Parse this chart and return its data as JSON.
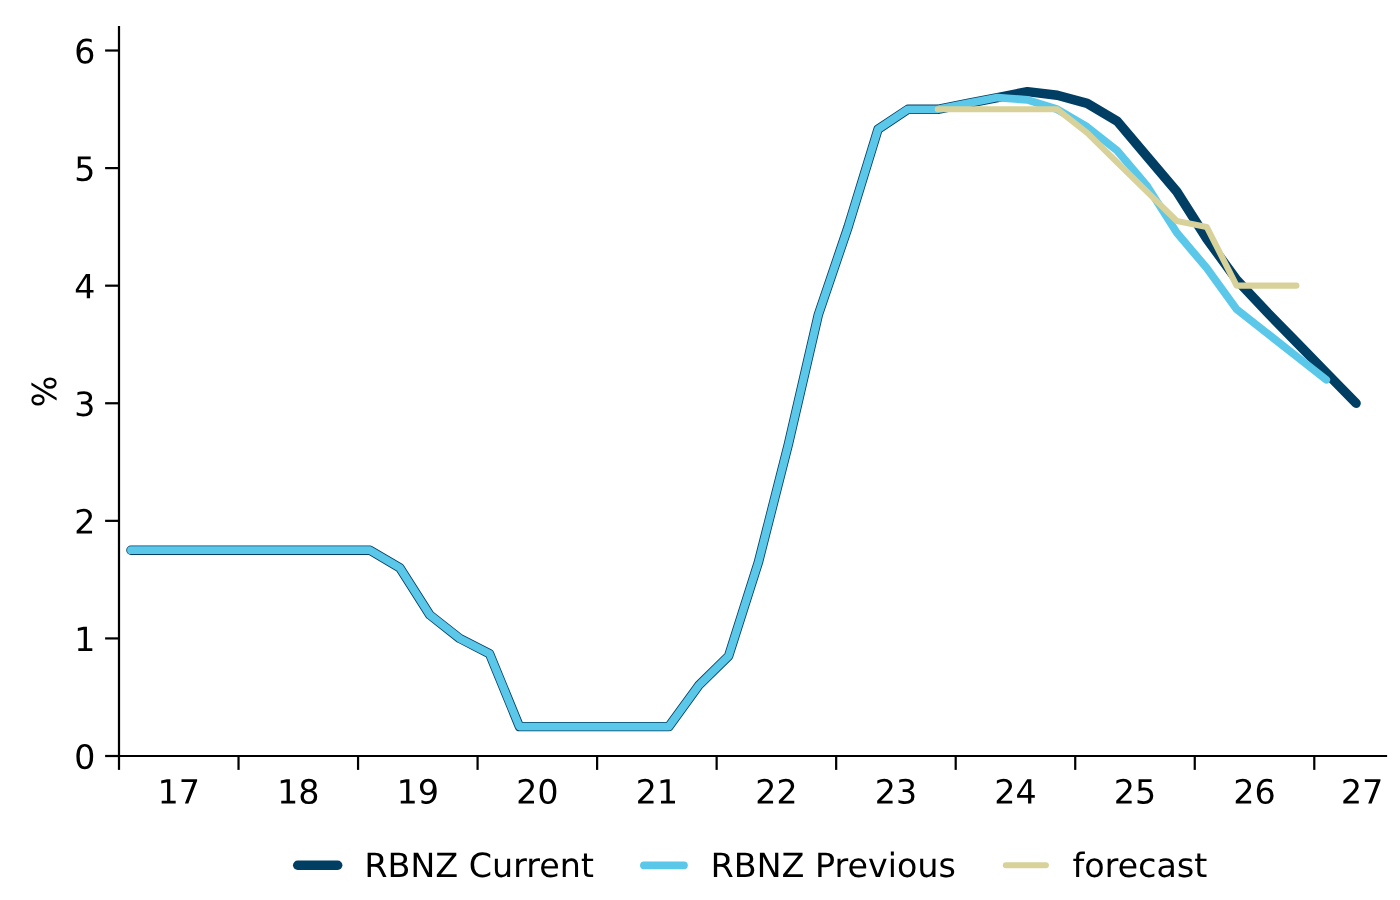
{
  "chart_data": {
    "type": "line",
    "ylabel": "%",
    "xlim": [
      17,
      27.6
    ],
    "ylim": [
      0,
      6.2
    ],
    "yticks": [
      0,
      1,
      2,
      3,
      4,
      5,
      6
    ],
    "xticks": [
      {
        "value": 17,
        "label": null
      },
      {
        "value": 17.5,
        "label": "17"
      },
      {
        "value": 18,
        "label": null
      },
      {
        "value": 18.5,
        "label": "18"
      },
      {
        "value": 19,
        "label": null
      },
      {
        "value": 19.5,
        "label": "19"
      },
      {
        "value": 20,
        "label": null
      },
      {
        "value": 20.5,
        "label": "20"
      },
      {
        "value": 21,
        "label": null
      },
      {
        "value": 21.5,
        "label": "21"
      },
      {
        "value": 22,
        "label": null
      },
      {
        "value": 22.5,
        "label": "22"
      },
      {
        "value": 23,
        "label": null
      },
      {
        "value": 23.5,
        "label": "23"
      },
      {
        "value": 24,
        "label": null
      },
      {
        "value": 24.5,
        "label": "24"
      },
      {
        "value": 25,
        "label": null
      },
      {
        "value": 25.5,
        "label": "25"
      },
      {
        "value": 26,
        "label": null
      },
      {
        "value": 26.5,
        "label": "26"
      },
      {
        "value": 27,
        "label": null
      },
      {
        "value": 27.4,
        "label": "27"
      }
    ],
    "grid": false,
    "legend": "bottom",
    "line_style": "solid",
    "marker": "none",
    "series": [
      {
        "name": "RBNZ Current",
        "color": "#003f63",
        "x": [
          17.1,
          17.35,
          17.6,
          17.85,
          18.1,
          18.35,
          18.6,
          18.85,
          19.1,
          19.35,
          19.6,
          19.85,
          20.1,
          20.35,
          20.6,
          20.85,
          21.1,
          21.35,
          21.6,
          21.85,
          22.1,
          22.35,
          22.6,
          22.85,
          23.1,
          23.35,
          23.6,
          23.85,
          24.1,
          24.35,
          24.6,
          24.85,
          25.1,
          25.35,
          25.6,
          25.85,
          26.1,
          26.35,
          26.6,
          26.85,
          27.1,
          27.35
        ],
        "values": [
          1.75,
          1.75,
          1.75,
          1.75,
          1.75,
          1.75,
          1.75,
          1.75,
          1.75,
          1.6,
          1.2,
          1.0,
          0.87,
          0.25,
          0.25,
          0.25,
          0.25,
          0.25,
          0.25,
          0.6,
          0.85,
          1.65,
          2.65,
          3.75,
          4.5,
          5.33,
          5.5,
          5.5,
          5.55,
          5.6,
          5.65,
          5.62,
          5.55,
          5.4,
          5.1,
          4.8,
          4.4,
          4.05,
          3.78,
          3.52,
          3.26,
          3.0
        ]
      },
      {
        "name": "RBNZ Previous",
        "color": "#5bc8ea",
        "x": [
          17.1,
          17.35,
          17.6,
          17.85,
          18.1,
          18.35,
          18.6,
          18.85,
          19.1,
          19.35,
          19.6,
          19.85,
          20.1,
          20.35,
          20.6,
          20.85,
          21.1,
          21.35,
          21.6,
          21.85,
          22.1,
          22.35,
          22.6,
          22.85,
          23.1,
          23.35,
          23.6,
          23.85,
          24.1,
          24.35,
          24.6,
          24.85,
          25.1,
          25.35,
          25.6,
          25.85,
          26.1,
          26.35,
          26.6,
          26.85,
          27.1
        ],
        "values": [
          1.75,
          1.75,
          1.75,
          1.75,
          1.75,
          1.75,
          1.75,
          1.75,
          1.75,
          1.6,
          1.2,
          1.0,
          0.87,
          0.25,
          0.25,
          0.25,
          0.25,
          0.25,
          0.25,
          0.6,
          0.85,
          1.65,
          2.65,
          3.75,
          4.5,
          5.33,
          5.5,
          5.5,
          5.55,
          5.6,
          5.58,
          5.5,
          5.35,
          5.15,
          4.85,
          4.45,
          4.15,
          3.8,
          3.6,
          3.4,
          3.2
        ]
      },
      {
        "name": "forecast",
        "color": "#d8d29a",
        "x": [
          23.85,
          24.1,
          24.35,
          24.6,
          24.85,
          25.1,
          25.35,
          25.6,
          25.85,
          26.1,
          26.35,
          26.6,
          26.85
        ],
        "values": [
          5.5,
          5.5,
          5.5,
          5.5,
          5.5,
          5.3,
          5.05,
          4.8,
          4.55,
          4.5,
          4.0,
          4.0,
          4.0
        ]
      }
    ]
  }
}
